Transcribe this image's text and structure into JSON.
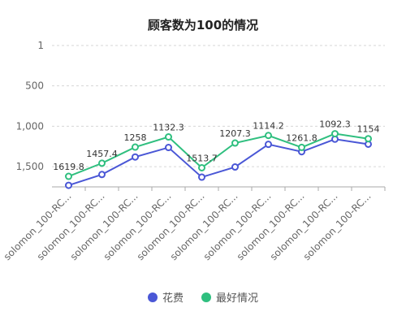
{
  "chart_data": {
    "type": "line",
    "title": "顾客数为100的情况",
    "categories": [
      "solomon_100-RC...",
      "solomon_100-RC...",
      "solomon_100-RC...",
      "solomon_100-RC...",
      "solomon_100-RC...",
      "solomon_100-RC...",
      "solomon_100-RC...",
      "solomon_100-RC...",
      "solomon_100-RC...",
      "solomon_100-RC..."
    ],
    "y_axis": {
      "inverted": true,
      "range": [
        1,
        1750
      ],
      "ticks": [
        1,
        500,
        1000,
        1500
      ],
      "tick_labels": [
        "1",
        "500",
        "1,000",
        "1,500"
      ],
      "grid": true
    },
    "series": [
      {
        "name": "花费",
        "color": "#4a57d6",
        "values": [
          1731,
          1597,
          1380,
          1263,
          1630,
          1504,
          1224,
          1315,
          1160,
          1222
        ]
      },
      {
        "name": "最好情况",
        "color": "#2fbf7f",
        "values": [
          1619.8,
          1457.4,
          1258,
          1132.3,
          1513.7,
          1207.3,
          1114.2,
          1261.8,
          1092.3,
          1154
        ],
        "labels": [
          "1619.8",
          "1457.4",
          "1258",
          "1132.3",
          "1513.7",
          "1207.3",
          "1114.2",
          "1261.8",
          "1092.3",
          "1154"
        ]
      }
    ],
    "legend": {
      "position": "bottom"
    }
  }
}
